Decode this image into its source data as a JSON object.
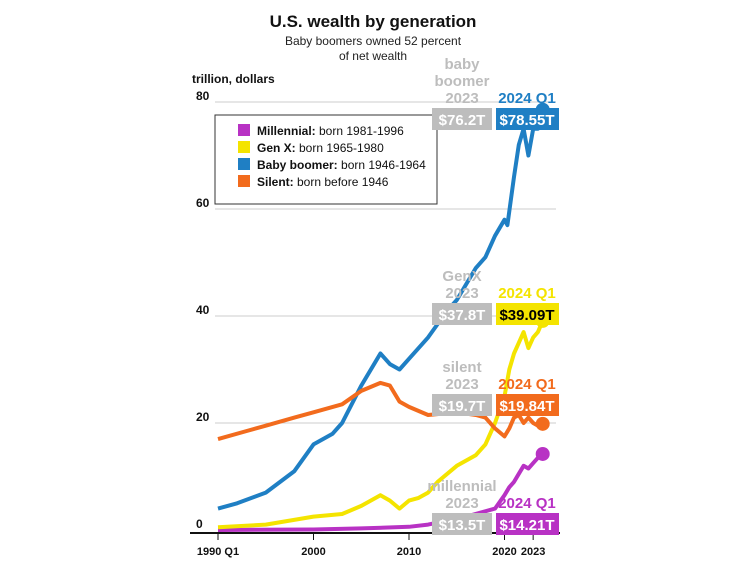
{
  "chart_data": {
    "type": "line",
    "title": "U.S. wealth by generation",
    "subtitle": [
      "Baby boomers owned 52 percent",
      "of net wealth"
    ],
    "ylabel": "trillion, dollars",
    "ylim": [
      0,
      80
    ],
    "yticks": [
      0,
      20,
      40,
      60,
      80
    ],
    "xlim": [
      1990,
      2024.25
    ],
    "xticks": [
      {
        "v": 1990,
        "label": "1990 Q1"
      },
      {
        "v": 2000,
        "label": "2000"
      },
      {
        "v": 2010,
        "label": "2010"
      },
      {
        "v": 2020,
        "label": "2020"
      },
      {
        "v": 2023,
        "label": "2023"
      }
    ],
    "grid": true,
    "legend_placement": "top-left",
    "series": [
      {
        "name": "Millennial",
        "desc": "born 1981-1996",
        "color": "#b832c4",
        "x": [
          1990,
          2000,
          2005,
          2010,
          2012,
          2016,
          2019,
          2020,
          2020.5,
          2021,
          2021.5,
          2022,
          2022.5,
          2023,
          2023.5,
          2024
        ],
        "y": [
          0,
          0.1,
          0.3,
          0.6,
          1,
          2.5,
          4,
          6.5,
          8,
          9,
          10.5,
          12,
          11.5,
          12.5,
          13.5,
          14.21
        ],
        "label_2023": "$13.5T",
        "label_2024": "$14.21T",
        "tag_2023": [
          "millennial",
          "2023"
        ]
      },
      {
        "name": "Gen X",
        "desc": "born 1965-1980",
        "color": "#f4e400",
        "x": [
          1990,
          1995,
          2000,
          2003,
          2005,
          2007,
          2008,
          2009,
          2010,
          2011,
          2012,
          2013,
          2015,
          2017,
          2018,
          2019,
          2020,
          2020.5,
          2021,
          2021.5,
          2022,
          2022.5,
          2023,
          2023.5,
          2024
        ],
        "y": [
          0.5,
          1,
          2.5,
          3,
          4.5,
          6.5,
          5.5,
          4,
          5.5,
          6,
          7,
          9,
          12,
          14,
          16,
          20,
          25,
          30,
          33,
          35,
          37,
          34,
          36,
          37,
          39.09
        ],
        "label_2023": "$37.8T",
        "label_2024": "$39.09T",
        "tag_2023": [
          "GenX",
          "2023"
        ]
      },
      {
        "name": "Baby boomer",
        "desc": "born 1946-1964",
        "color": "#1f7fc4",
        "x": [
          1990,
          1992,
          1995,
          1998,
          2000,
          2002,
          2003,
          2005,
          2007,
          2008,
          2009,
          2010,
          2012,
          2014,
          2015,
          2017,
          2018,
          2019,
          2020,
          2020.3,
          2021,
          2021.5,
          2022,
          2022.5,
          2023,
          2023.5,
          2024
        ],
        "y": [
          4,
          5,
          7,
          11,
          16,
          18,
          20,
          27,
          33,
          31,
          30,
          32,
          36,
          41,
          43,
          49,
          51,
          55,
          58,
          57,
          66,
          72,
          75,
          70,
          75,
          75,
          78.55
        ],
        "label_2023": "$76.2T",
        "label_2024": "$78.55T",
        "tag_2023": [
          "baby",
          "boomer",
          "2023"
        ]
      },
      {
        "name": "Silent",
        "desc": "born before 1946",
        "color": "#f26b1d",
        "x": [
          1990,
          1993,
          1995,
          1998,
          2000,
          2003,
          2005,
          2007,
          2008,
          2009,
          2010,
          2012,
          2015,
          2017,
          2018,
          2019,
          2020,
          2020.5,
          2021,
          2021.5,
          2022,
          2022.5,
          2023,
          2023.5,
          2024
        ],
        "y": [
          17,
          18.5,
          19.5,
          21,
          22,
          23.5,
          26,
          27.5,
          27,
          24,
          23,
          21.5,
          22,
          21.5,
          21,
          19,
          17.5,
          19,
          21,
          21.5,
          20,
          21,
          20,
          19.5,
          19.84
        ],
        "label_2023": "$19.7T",
        "label_2024": "$19.84T",
        "tag_2023": [
          "silent",
          "2023"
        ]
      }
    ],
    "latest_period": "2024 Q1"
  }
}
